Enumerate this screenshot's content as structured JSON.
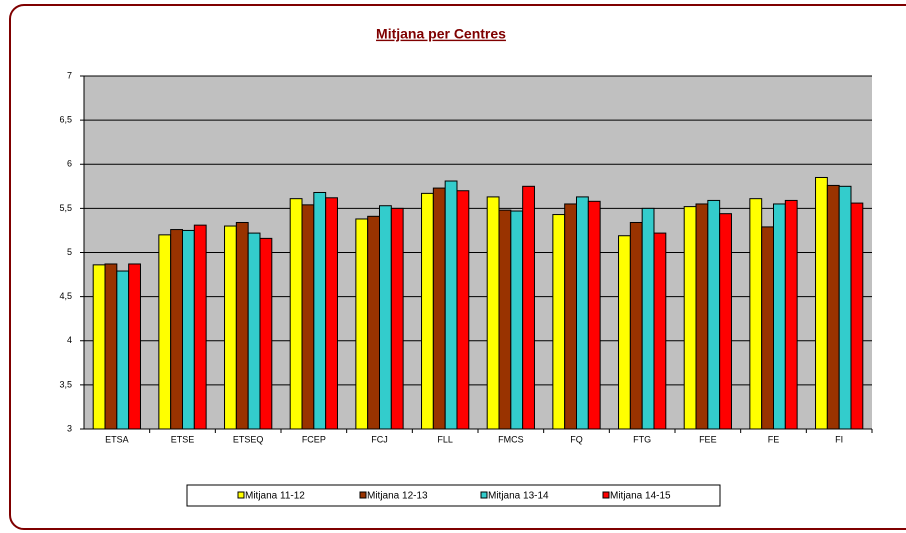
{
  "chart_data": {
    "type": "bar",
    "title": "Mitjana per Centres",
    "categories": [
      "ETSA",
      "ETSE",
      "ETSEQ",
      "FCEP",
      "FCJ",
      "FLL",
      "FMCS",
      "FQ",
      "FTG",
      "FEE",
      "FE",
      "FI"
    ],
    "series": [
      {
        "name": "Mitjana 11-12",
        "color": "#ffff00",
        "values": [
          4.86,
          5.2,
          5.3,
          5.61,
          5.38,
          5.67,
          5.63,
          5.43,
          5.19,
          5.52,
          5.61,
          5.85
        ]
      },
      {
        "name": "Mitjana 12-13",
        "color": "#993300",
        "values": [
          4.87,
          5.26,
          5.34,
          5.54,
          5.41,
          5.73,
          5.48,
          5.55,
          5.34,
          5.55,
          5.29,
          5.76
        ]
      },
      {
        "name": "Mitjana 13-14",
        "color": "#33cccc",
        "values": [
          4.79,
          5.25,
          5.22,
          5.68,
          5.53,
          5.81,
          5.47,
          5.63,
          5.5,
          5.59,
          5.55,
          5.75
        ]
      },
      {
        "name": "Mitjana 14-15",
        "color": "#ff0000",
        "values": [
          4.87,
          5.31,
          5.16,
          5.62,
          5.5,
          5.7,
          5.75,
          5.58,
          5.22,
          5.44,
          5.59,
          5.56
        ]
      }
    ],
    "ylim": [
      3,
      7
    ],
    "yticks": [
      3,
      {
        "value": 3.5,
        "label": "3,5"
      },
      4,
      {
        "value": 4.5,
        "label": "4,5"
      },
      5,
      {
        "value": 5.5,
        "label": "5,5"
      },
      6,
      {
        "value": 6.5,
        "label": "6,5"
      },
      7
    ],
    "grid": true,
    "legend": "bottom"
  }
}
